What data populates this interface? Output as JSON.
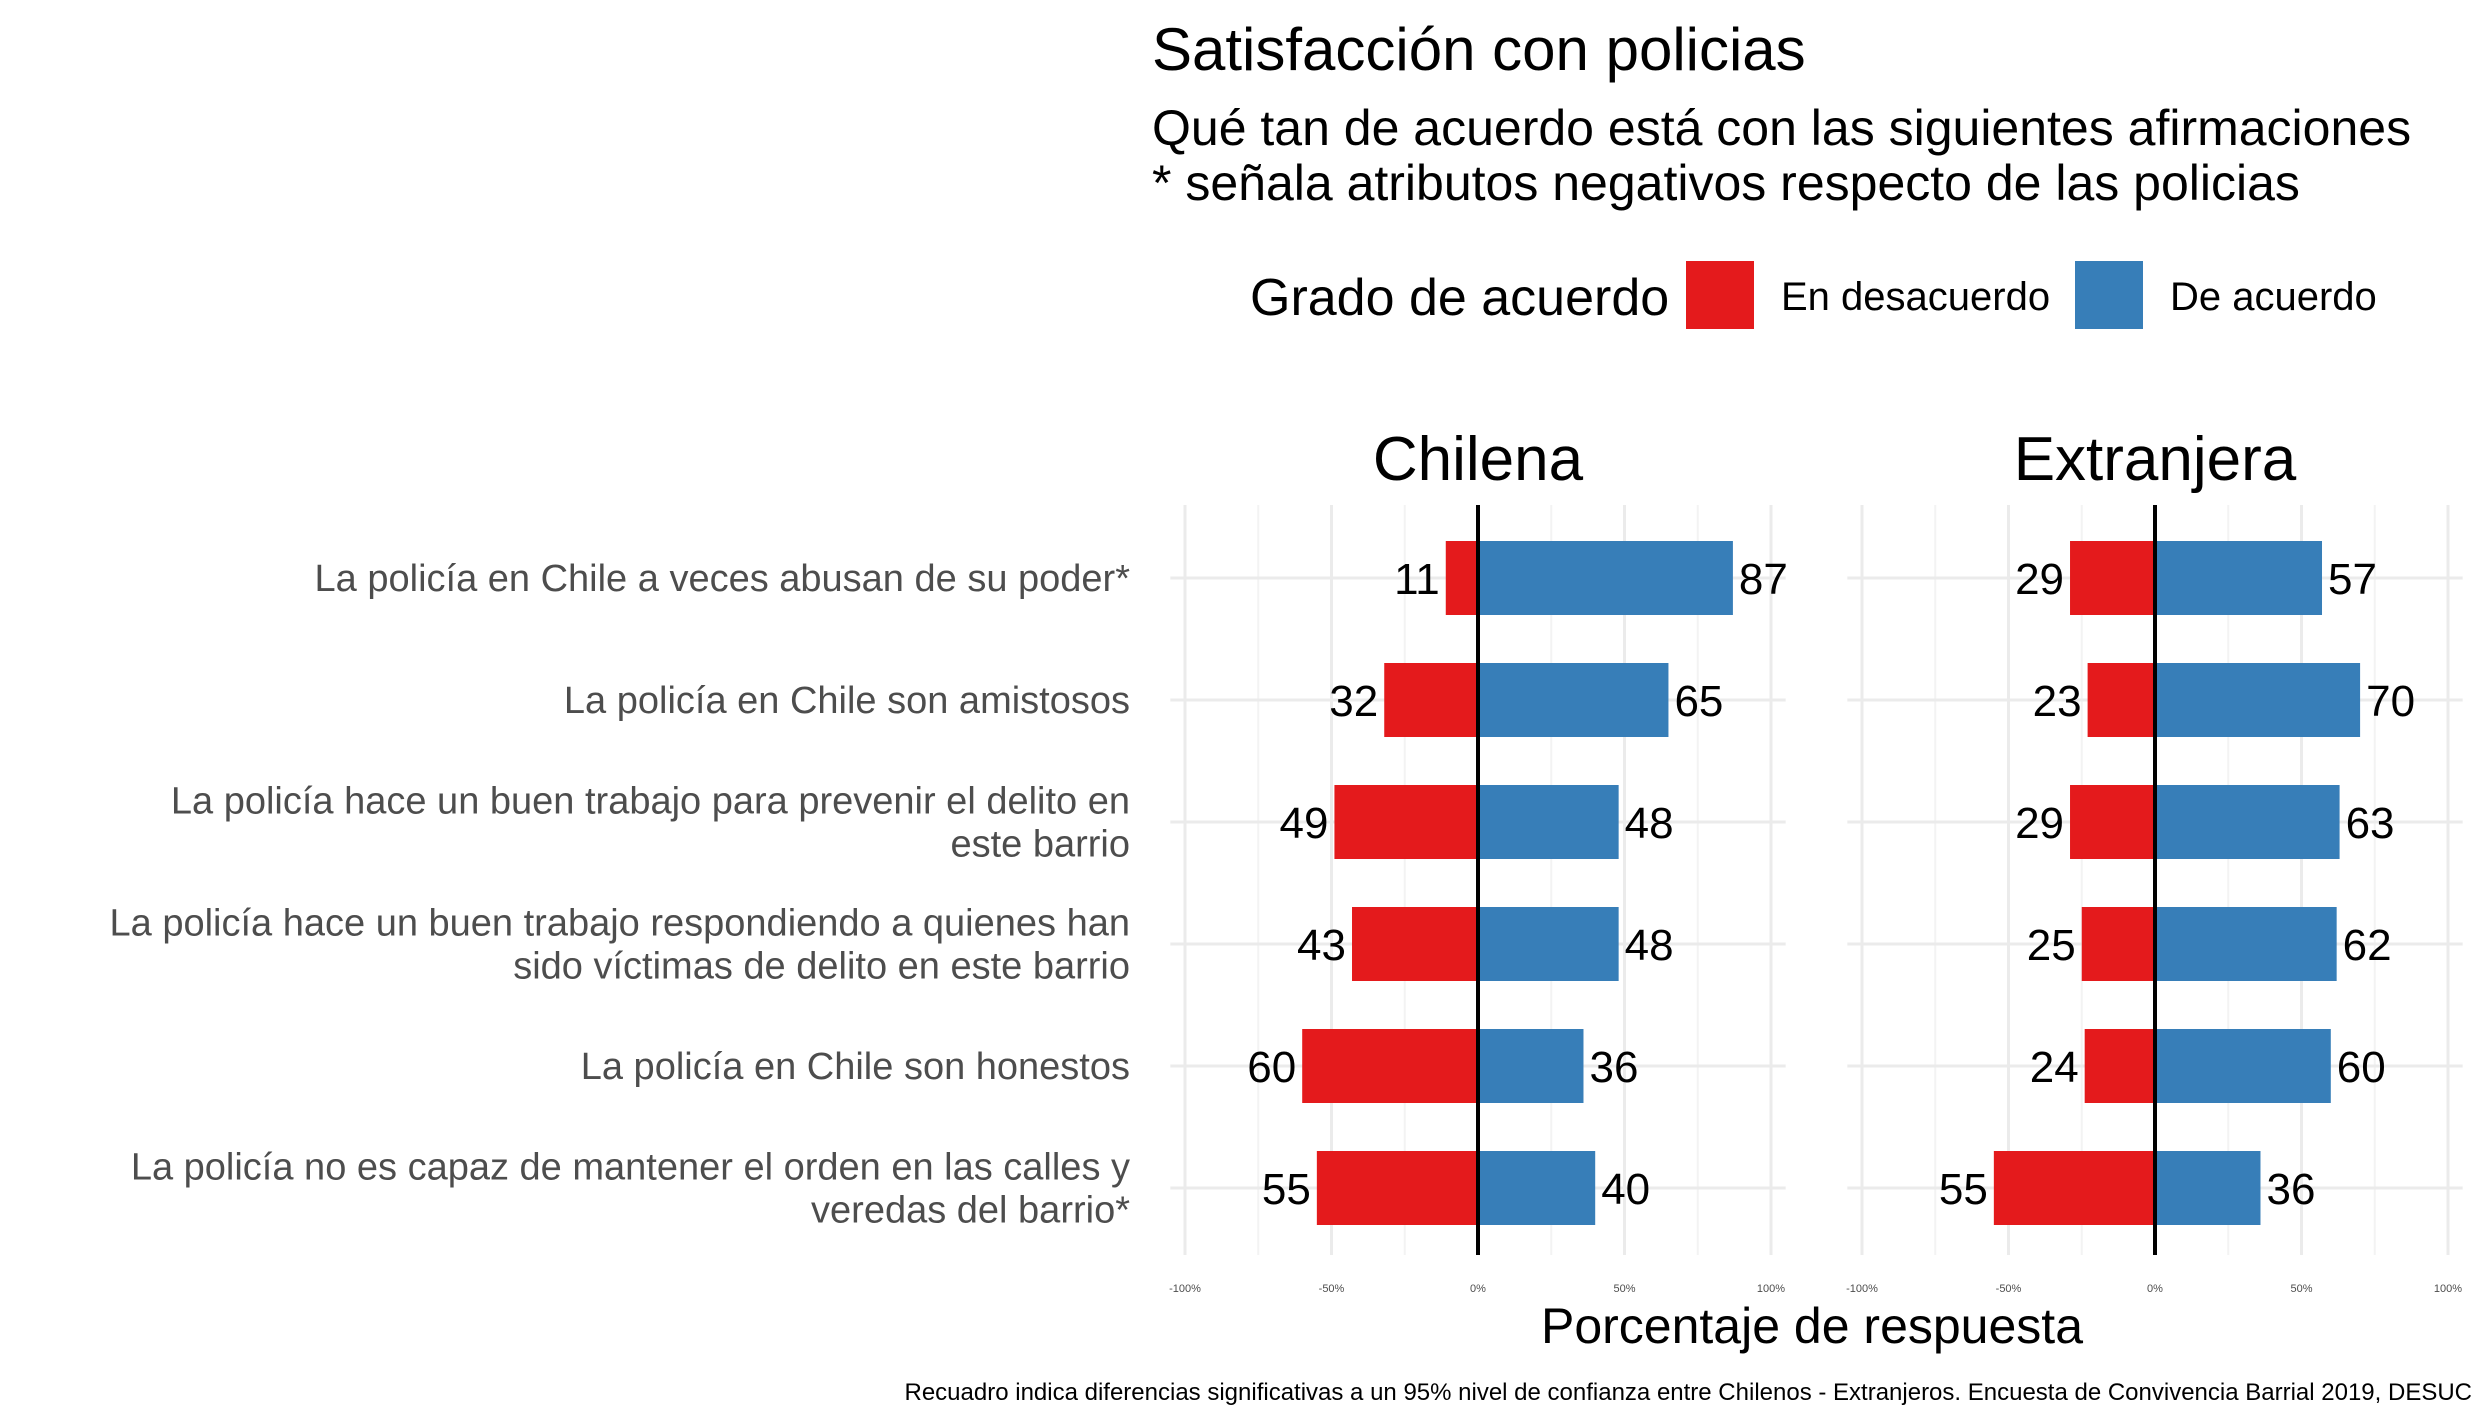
{
  "chart_data": {
    "type": "bar",
    "orientation": "horizontal-diverging",
    "title": "Satisfacción con policias",
    "subtitle": [
      "Qué tan de acuerdo está con las siguientes afirmaciones",
      "* señala atributos negativos respecto de las policias"
    ],
    "legend": {
      "title": "Grado de acuerdo",
      "placement": "top-right",
      "entries": [
        {
          "label": "En desacuerdo",
          "color": "#E41A1C"
        },
        {
          "label": "De acuerdo",
          "color": "#377EB8"
        }
      ]
    },
    "xlabel": "Porcentaje de respuesta",
    "xlim": [
      -100,
      100
    ],
    "xticks": [
      "-100%",
      "-50%",
      "0%",
      "50%",
      "100%"
    ],
    "grid": true,
    "categories": [
      [
        "La policía en Chile a veces abusan de su poder*"
      ],
      [
        "La policía en Chile son amistosos"
      ],
      [
        "La policía hace un buen trabajo para prevenir el delito en",
        "este barrio"
      ],
      [
        "La policía hace un buen trabajo respondiendo a quienes han",
        "sido víctimas de delito en este barrio"
      ],
      [
        "La policía en Chile son honestos"
      ],
      [
        "La policía no es capaz de mantener el orden en las calles y",
        "veredas del barrio*"
      ]
    ],
    "panels": [
      {
        "name": "Chilena",
        "desacuerdo": [
          11,
          32,
          49,
          43,
          60,
          55
        ],
        "acuerdo": [
          87,
          65,
          48,
          48,
          36,
          40
        ]
      },
      {
        "name": "Extranjera",
        "desacuerdo": [
          29,
          23,
          29,
          25,
          24,
          55
        ],
        "acuerdo": [
          57,
          70,
          63,
          62,
          60,
          36
        ]
      }
    ],
    "caption": "Recuadro indica diferencias significativas a un 95% nivel de confianza entre Chilenos - Extranjeros. Encuesta de Convivencia Barrial 2019, DESUC"
  }
}
